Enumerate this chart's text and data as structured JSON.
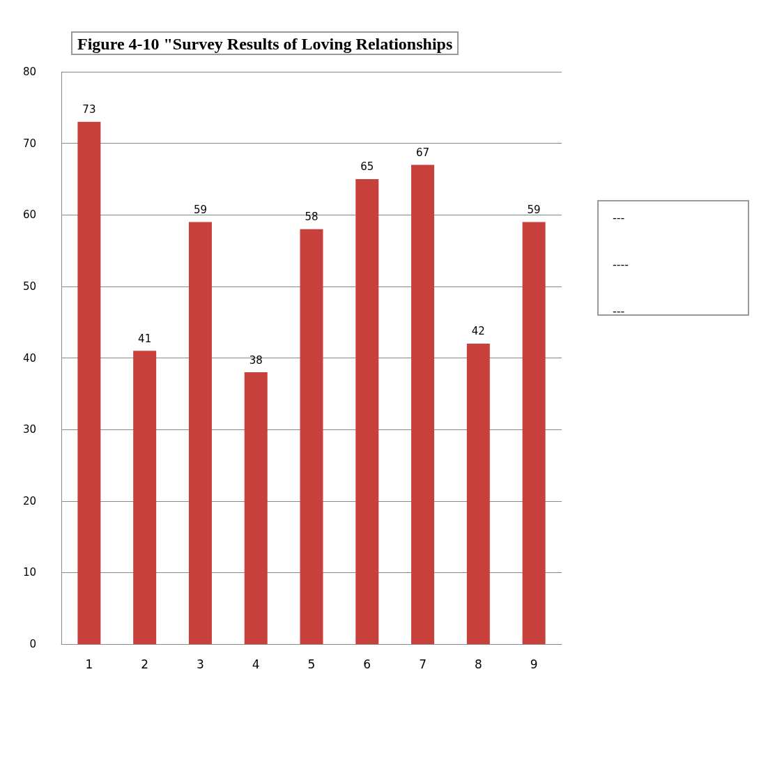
{
  "chart_data": {
    "type": "bar",
    "title": "Figure 4-10 \"Survey Results of Loving Relationships",
    "categories": [
      "1",
      "2",
      "3",
      "4",
      "5",
      "6",
      "7",
      "8",
      "9"
    ],
    "values": [
      73,
      41,
      59,
      38,
      58,
      65,
      67,
      42,
      59
    ],
    "color": "#c8403c",
    "ylim": [
      0,
      80
    ],
    "yticks": [
      0,
      10,
      20,
      30,
      40,
      50,
      60,
      70,
      80
    ],
    "grid": "y",
    "data_labels": true,
    "annotations": [
      "---",
      "----",
      "---"
    ]
  }
}
